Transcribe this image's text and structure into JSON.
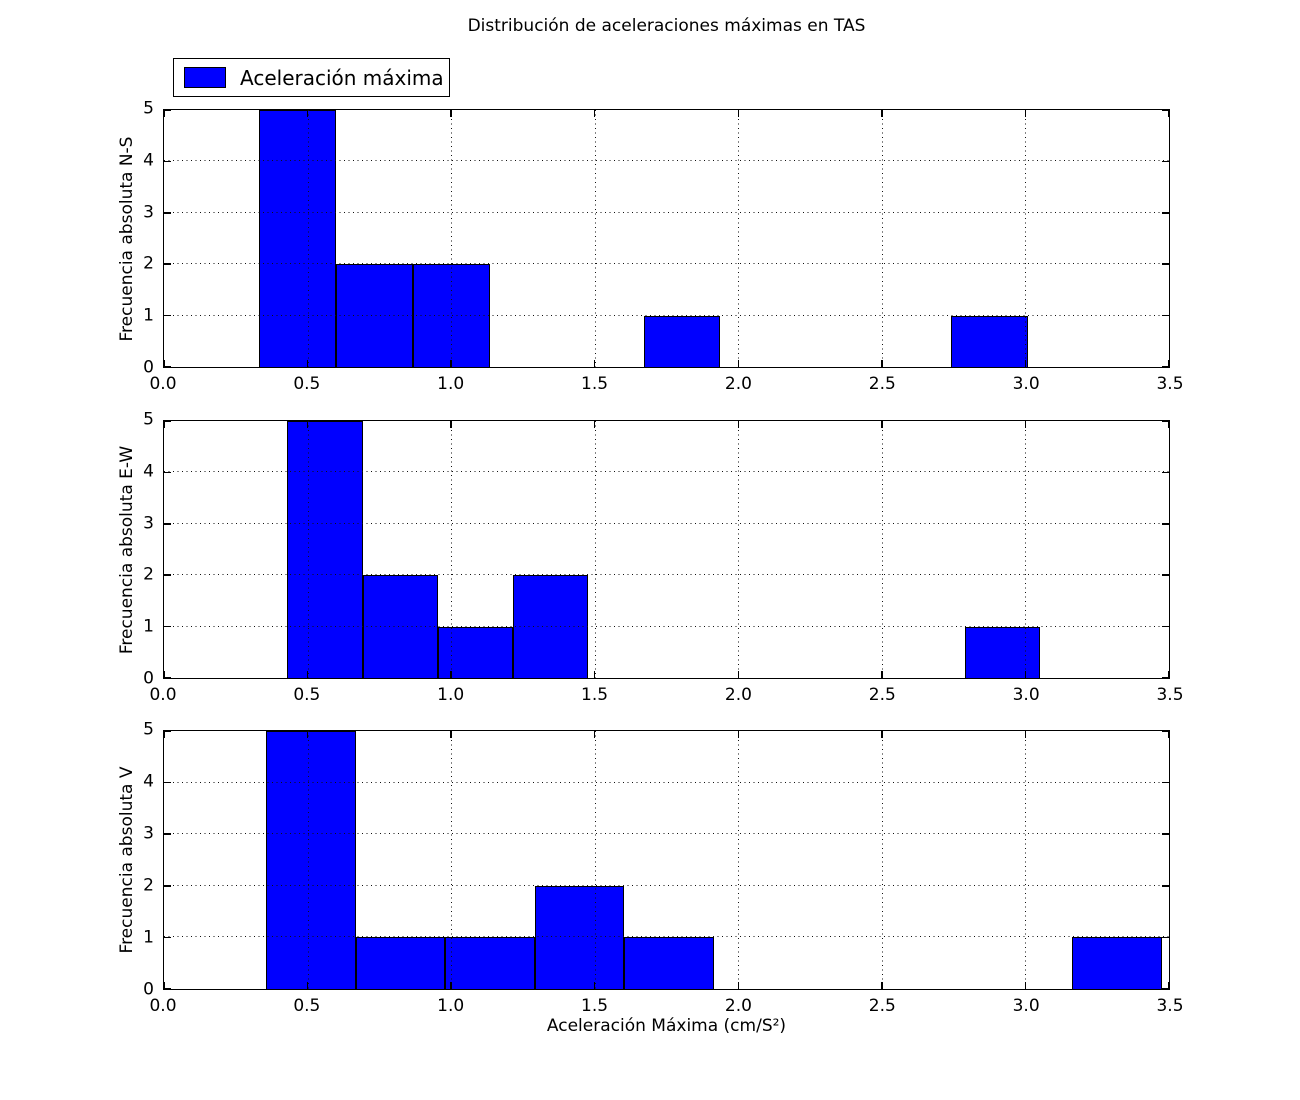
{
  "figure": {
    "title": "Distribución de aceleraciones máximas en TAS",
    "xlabel": "Aceleración Máxima (cm/S²)",
    "legend": {
      "label": "Aceleración máxima",
      "patch_color": "#0000ff"
    },
    "colors": {
      "bar_fill": "#0000ff",
      "bar_edge": "#000000",
      "grid": "#111111",
      "frame": "#000000",
      "background": "#ffffff"
    }
  },
  "chart_data": [
    {
      "type": "bar",
      "subtype": "histogram",
      "series_name": "Aceleración máxima",
      "ylabel": "Frecuencia absoluta N-S",
      "bin_edges": [
        0.33,
        0.598,
        0.866,
        1.134,
        1.402,
        1.67,
        1.938,
        2.206,
        2.474,
        2.742,
        3.01
      ],
      "counts": [
        5,
        2,
        2,
        0,
        0,
        1,
        0,
        0,
        0,
        1
      ],
      "xlim": [
        0.0,
        3.5
      ],
      "ylim": [
        0,
        5
      ],
      "xticks": [
        0.0,
        0.5,
        1.0,
        1.5,
        2.0,
        2.5,
        3.0,
        3.5
      ],
      "xtick_labels": [
        "0.0",
        "0.5",
        "1.0",
        "1.5",
        "2.0",
        "2.5",
        "3.0",
        "3.5"
      ],
      "yticks": [
        0,
        1,
        2,
        3,
        4,
        5
      ],
      "ytick_labels": [
        "0",
        "1",
        "2",
        "3",
        "4",
        "5"
      ],
      "grid": "dotted"
    },
    {
      "type": "bar",
      "subtype": "histogram",
      "series_name": "Aceleración máxima",
      "ylabel": "Frecuencia absoluta E-W",
      "bin_edges": [
        0.43,
        0.692,
        0.954,
        1.216,
        1.478,
        1.74,
        2.002,
        2.264,
        2.526,
        2.788,
        3.05
      ],
      "counts": [
        5,
        2,
        1,
        2,
        0,
        0,
        0,
        0,
        0,
        1
      ],
      "xlim": [
        0.0,
        3.5
      ],
      "ylim": [
        0,
        5
      ],
      "xticks": [
        0.0,
        0.5,
        1.0,
        1.5,
        2.0,
        2.5,
        3.0,
        3.5
      ],
      "xtick_labels": [
        "0.0",
        "0.5",
        "1.0",
        "1.5",
        "2.0",
        "2.5",
        "3.0",
        "3.5"
      ],
      "yticks": [
        0,
        1,
        2,
        3,
        4,
        5
      ],
      "ytick_labels": [
        "0",
        "1",
        "2",
        "3",
        "4",
        "5"
      ],
      "grid": "dotted"
    },
    {
      "type": "bar",
      "subtype": "histogram",
      "series_name": "Aceleración máxima",
      "ylabel": "Frecuencia absoluta V",
      "bin_edges": [
        0.355,
        0.667,
        0.979,
        1.291,
        1.603,
        1.915,
        2.227,
        2.539,
        2.851,
        3.163,
        3.475
      ],
      "counts": [
        5,
        1,
        1,
        2,
        1,
        0,
        0,
        0,
        0,
        1
      ],
      "xlim": [
        0.0,
        3.5
      ],
      "ylim": [
        0,
        5
      ],
      "xticks": [
        0.0,
        0.5,
        1.0,
        1.5,
        2.0,
        2.5,
        3.0,
        3.5
      ],
      "xtick_labels": [
        "0.0",
        "0.5",
        "1.0",
        "1.5",
        "2.0",
        "2.5",
        "3.0",
        "3.5"
      ],
      "yticks": [
        0,
        1,
        2,
        3,
        4,
        5
      ],
      "ytick_labels": [
        "0",
        "1",
        "2",
        "3",
        "4",
        "5"
      ],
      "grid": "dotted"
    }
  ]
}
